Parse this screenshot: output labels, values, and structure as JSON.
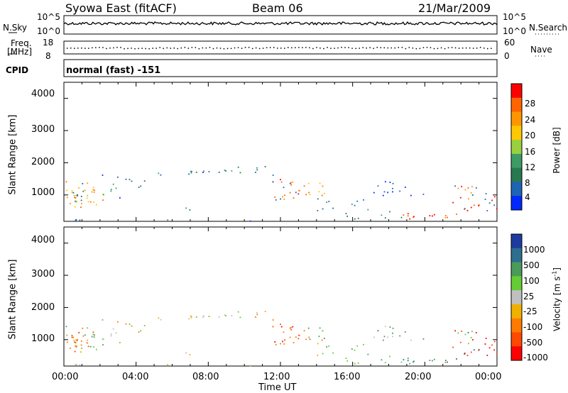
{
  "header": {
    "site": "Syowa East (fitACF)",
    "beam": "Beam 06",
    "date": "21/Mar/2009"
  },
  "top_panels": {
    "nsky_label": "N.Sky",
    "nsearch_label": "N.Search",
    "noise_ticks_left": [
      "10^5",
      "10^0"
    ],
    "noise_ticks_right": [
      "10^5",
      "10^0"
    ],
    "freq_label": "Freq.",
    "freq_unit": "[MHz]",
    "freq_ticks": [
      "18",
      "8"
    ],
    "nave_label": "Nave",
    "nave_ticks": [
      "60",
      "0"
    ],
    "cpid_label": "CPID",
    "cpid_value": "normal (fast) -151"
  },
  "chart_data": [
    {
      "type": "heatmap",
      "title": "",
      "xlabel": "",
      "ylabel": "Slant Range [km]",
      "xlim_hours": [
        0,
        24
      ],
      "ylim": [
        180,
        4500
      ],
      "yticks": [
        "4000",
        "3000",
        "2000",
        "1000"
      ],
      "colorbar": {
        "label": "Power [dB]",
        "ticks": [
          "28",
          "24",
          "20",
          "16",
          "12",
          "8",
          "4"
        ],
        "colors": [
          "#ff0000",
          "#ff6400",
          "#ff9600",
          "#ffc800",
          "#9ad040",
          "#3c9c64",
          "#287850",
          "#1e64b4",
          "#0028ff"
        ]
      }
    },
    {
      "type": "heatmap",
      "title": "",
      "xlabel": "Time UT",
      "ylabel": "Slant Range [km]",
      "xlim_hours": [
        0,
        24
      ],
      "ylim": [
        180,
        4500
      ],
      "yticks": [
        "4000",
        "3000",
        "2000",
        "1000"
      ],
      "xticks": [
        "00:00",
        "04:00",
        "08:00",
        "12:00",
        "16:00",
        "20:00",
        "00:00"
      ],
      "colorbar": {
        "label": "Velocity [m s",
        "label_sup": "-1",
        "label_end": "]",
        "ticks": [
          "1000",
          "500",
          "100",
          "25",
          "-25",
          "-100",
          "-500",
          "-1000"
        ],
        "colors": [
          "#1e3ca0",
          "#2e6e8e",
          "#4a9a5a",
          "#66cc33",
          "#c0c0c0",
          "#f0b000",
          "#ff7a00",
          "#ff4800",
          "#ff0000"
        ]
      }
    }
  ]
}
